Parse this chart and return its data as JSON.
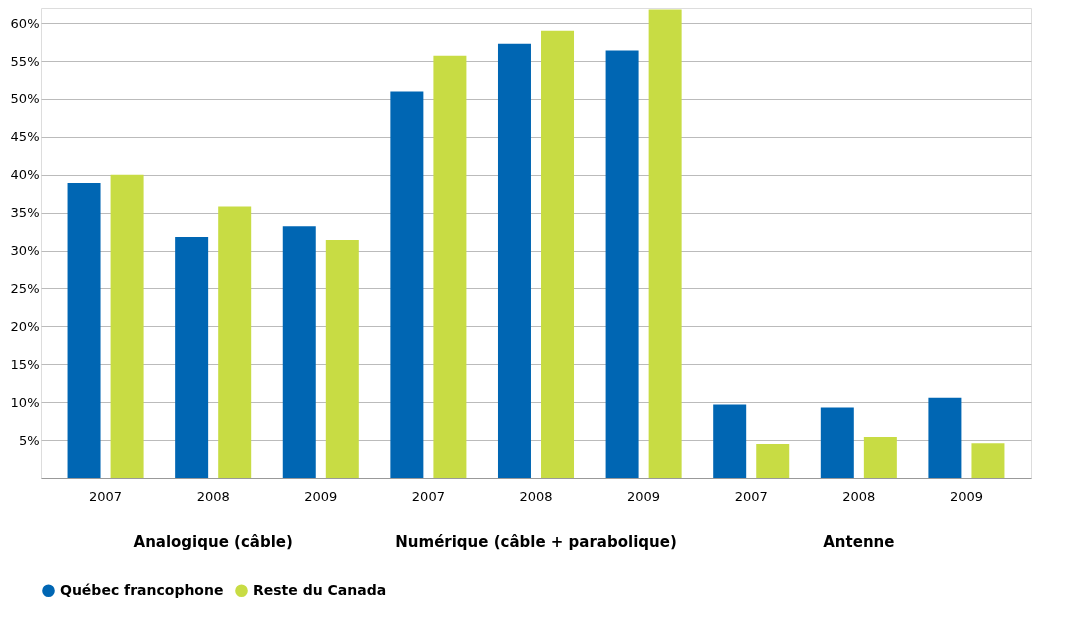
{
  "chart_data": {
    "type": "bar",
    "categories": [
      "2007",
      "2008",
      "2009",
      "2007",
      "2008",
      "2009",
      "2007",
      "2008",
      "2009"
    ],
    "series": [
      {
        "name": "Québec francophone",
        "color": "#0066b3",
        "values": [
          38.9,
          31.8,
          33.2,
          51.0,
          57.3,
          56.4,
          9.7,
          9.3,
          10.6
        ]
      },
      {
        "name": "Reste du Canada",
        "color": "#c8dc44",
        "values": [
          40.0,
          35.8,
          31.4,
          55.7,
          59.0,
          61.8,
          4.5,
          5.4,
          4.6
        ]
      }
    ],
    "annotations": [
      "Analogique (câble)",
      "Numérique (câble + parabolique)",
      "Antenne"
    ],
    "ylim": [
      0,
      62
    ],
    "yticks": [
      {
        "value": 5,
        "label": "5%"
      },
      {
        "value": 10,
        "label": "10%"
      },
      {
        "value": 15,
        "label": "15%"
      },
      {
        "value": 20,
        "label": "20%"
      },
      {
        "value": 25,
        "label": "25%"
      },
      {
        "value": 30,
        "label": "30%"
      },
      {
        "value": 35,
        "label": "35%"
      },
      {
        "value": 40,
        "label": "40%"
      },
      {
        "value": 45,
        "label": "45%"
      },
      {
        "value": 50,
        "label": "50%"
      },
      {
        "value": 55,
        "label": "55%"
      },
      {
        "value": 60,
        "label": "60%"
      }
    ],
    "grid": "y",
    "legend": "bottom left"
  }
}
